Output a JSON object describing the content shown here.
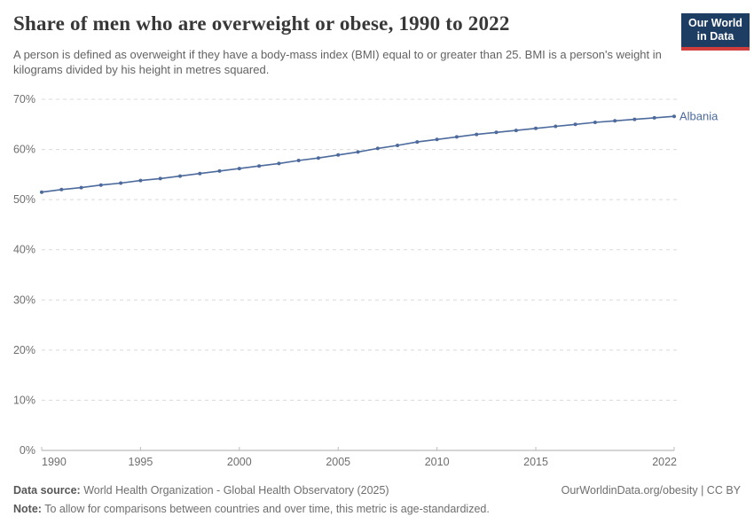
{
  "header": {
    "title": "Share of men who are overweight or obese, 1990 to 2022",
    "subtitle": "A person is defined as overweight if they have a body-mass index (BMI) equal to or greater than 25. BMI is a person's weight in kilograms divided by his height in metres squared.",
    "logo": {
      "line1": "Our World",
      "line2": "in Data",
      "bg_color": "#1d3d63",
      "accent_color": "#d13d3d"
    }
  },
  "chart_data": {
    "type": "line",
    "title": "Share of men who are overweight or obese, 1990 to 2022",
    "xlabel": "",
    "ylabel": "",
    "xlim": [
      1990,
      2022
    ],
    "ylim": [
      0,
      70
    ],
    "grid": "horizontal-dashed",
    "legend_position": "end-of-line-label",
    "x_ticks": [
      1990,
      1995,
      2000,
      2005,
      2010,
      2015,
      2022
    ],
    "y_ticks": [
      0,
      10,
      20,
      30,
      40,
      50,
      60,
      70
    ],
    "y_tick_suffix": "%",
    "series": [
      {
        "name": "Albania",
        "color": "#4c6a9c",
        "x": [
          1990,
          1991,
          1992,
          1993,
          1994,
          1995,
          1996,
          1997,
          1998,
          1999,
          2000,
          2001,
          2002,
          2003,
          2004,
          2005,
          2006,
          2007,
          2008,
          2009,
          2010,
          2011,
          2012,
          2013,
          2014,
          2015,
          2016,
          2017,
          2018,
          2019,
          2020,
          2021,
          2022
        ],
        "values": [
          51.5,
          52.0,
          52.4,
          52.9,
          53.3,
          53.8,
          54.2,
          54.7,
          55.2,
          55.7,
          56.2,
          56.7,
          57.2,
          57.8,
          58.3,
          58.9,
          59.5,
          60.2,
          60.8,
          61.5,
          62.0,
          62.5,
          63.0,
          63.4,
          63.8,
          64.2,
          64.6,
          65.0,
          65.4,
          65.7,
          66.0,
          66.3,
          66.6
        ]
      }
    ],
    "colors": {
      "gridline": "#d9d9d9",
      "axis_line": "#a8a8a8",
      "tick_mark": "#bdbdbd",
      "tick_text": "#6e6e6e"
    }
  },
  "footer": {
    "data_source_label": "Data source:",
    "data_source": "World Health Organization - Global Health Observatory (2025)",
    "note_label": "Note:",
    "note": "To allow for comparisons between countries and over time, this metric is age-standardized.",
    "link": "OurWorldinData.org/obesity | CC BY"
  }
}
